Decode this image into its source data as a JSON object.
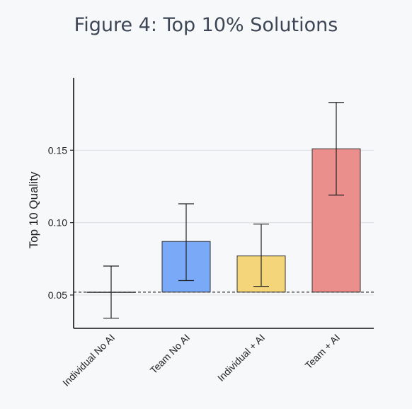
{
  "chart_data": {
    "type": "bar",
    "title": "Figure 4: Top 10% Solutions",
    "ylabel": "Top 10 Quality",
    "xlabel": "",
    "categories": [
      "Individual No AI",
      "Team No AI",
      "Individual + AI",
      "Team + AI"
    ],
    "values": [
      0.052,
      0.087,
      0.077,
      0.151
    ],
    "error_low": [
      0.034,
      0.06,
      0.056,
      0.119
    ],
    "error_high": [
      0.07,
      0.113,
      0.099,
      0.183
    ],
    "baseline": 0.052,
    "yticks": [
      0.05,
      0.1,
      0.15
    ],
    "ytick_labels": [
      "0.05",
      "0.10",
      "0.15"
    ],
    "ylim": [
      0.027,
      0.2
    ],
    "grid": true,
    "colors": [
      "#f7f8fa",
      "#7aa9f7",
      "#f5d57a",
      "#eb8f8d"
    ]
  }
}
